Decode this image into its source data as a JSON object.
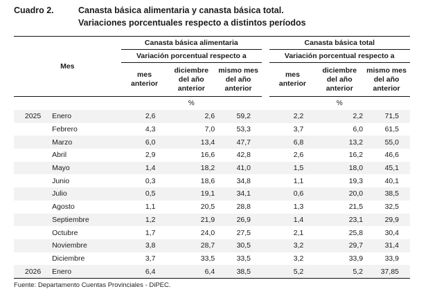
{
  "title": {
    "number": "Cuadro 2.",
    "line1": "Canasta básica alimentaria y canasta básica total.",
    "line2": "Variaciones porcentuales respecto a distintos períodos"
  },
  "table": {
    "row_header": "Mes",
    "groups": [
      {
        "name": "Canasta básica alimentaria",
        "subheader": "Variación porcentual respecto a",
        "columns": [
          {
            "l1": "mes",
            "l2": "anterior",
            "l3": ""
          },
          {
            "l1": "diciembre",
            "l2": "del año",
            "l3": "anterior"
          },
          {
            "l1": "mismo mes",
            "l2": "del año",
            "l3": "anterior"
          }
        ]
      },
      {
        "name": "Canasta básica total",
        "subheader": "Variación porcentual respecto a",
        "columns": [
          {
            "l1": "mes",
            "l2": "anterior",
            "l3": ""
          },
          {
            "l1": "diciembre",
            "l2": "del año",
            "l3": "anterior"
          },
          {
            "l1": "mismo mes",
            "l2": "del año",
            "l3": "anterior"
          }
        ]
      }
    ],
    "unit": "%",
    "rows": [
      {
        "year": "2025",
        "month": "Enero",
        "cba": [
          "2,6",
          "2,6",
          "59,2"
        ],
        "cbt": [
          "2,2",
          "2,2",
          "71,5"
        ]
      },
      {
        "year": "",
        "month": "Febrero",
        "cba": [
          "4,3",
          "7,0",
          "53,3"
        ],
        "cbt": [
          "3,7",
          "6,0",
          "61,5"
        ]
      },
      {
        "year": "",
        "month": "Marzo",
        "cba": [
          "6,0",
          "13,4",
          "47,7"
        ],
        "cbt": [
          "6,8",
          "13,2",
          "55,0"
        ]
      },
      {
        "year": "",
        "month": "Abril",
        "cba": [
          "2,9",
          "16,6",
          "42,8"
        ],
        "cbt": [
          "2,6",
          "16,2",
          "46,6"
        ]
      },
      {
        "year": "",
        "month": "Mayo",
        "cba": [
          "1,4",
          "18,2",
          "41,0"
        ],
        "cbt": [
          "1,5",
          "18,0",
          "45,1"
        ]
      },
      {
        "year": "",
        "month": "Junio",
        "cba": [
          "0,3",
          "18,6",
          "34,8"
        ],
        "cbt": [
          "1,1",
          "19,3",
          "40,1"
        ]
      },
      {
        "year": "",
        "month": "Julio",
        "cba": [
          "0,5",
          "19,1",
          "34,1"
        ],
        "cbt": [
          "0,6",
          "20,0",
          "38,5"
        ]
      },
      {
        "year": "",
        "month": "Agosto",
        "cba": [
          "1,1",
          "20,5",
          "28,8"
        ],
        "cbt": [
          "1,3",
          "21,5",
          "32,5"
        ]
      },
      {
        "year": "",
        "month": "Septiembre",
        "cba": [
          "1,2",
          "21,9",
          "26,9"
        ],
        "cbt": [
          "1,4",
          "23,1",
          "29,9"
        ]
      },
      {
        "year": "",
        "month": "Octubre",
        "cba": [
          "1,7",
          "24,0",
          "27,5"
        ],
        "cbt": [
          "2,1",
          "25,8",
          "30,4"
        ]
      },
      {
        "year": "",
        "month": "Noviembre",
        "cba": [
          "3,8",
          "28,7",
          "30,5"
        ],
        "cbt": [
          "3,2",
          "29,7",
          "31,4"
        ]
      },
      {
        "year": "",
        "month": "Diciembre",
        "cba": [
          "3,7",
          "33,5",
          "33,5"
        ],
        "cbt": [
          "3,2",
          "33,9",
          "33,9"
        ]
      },
      {
        "year": "2026",
        "month": "Enero",
        "cba": [
          "6,4",
          "6,4",
          "38,5"
        ],
        "cbt": [
          "5,2",
          "5,2",
          "37,85"
        ]
      }
    ]
  },
  "source": "Fuente: Departamento Cuentas Provinciales - DiPEC."
}
